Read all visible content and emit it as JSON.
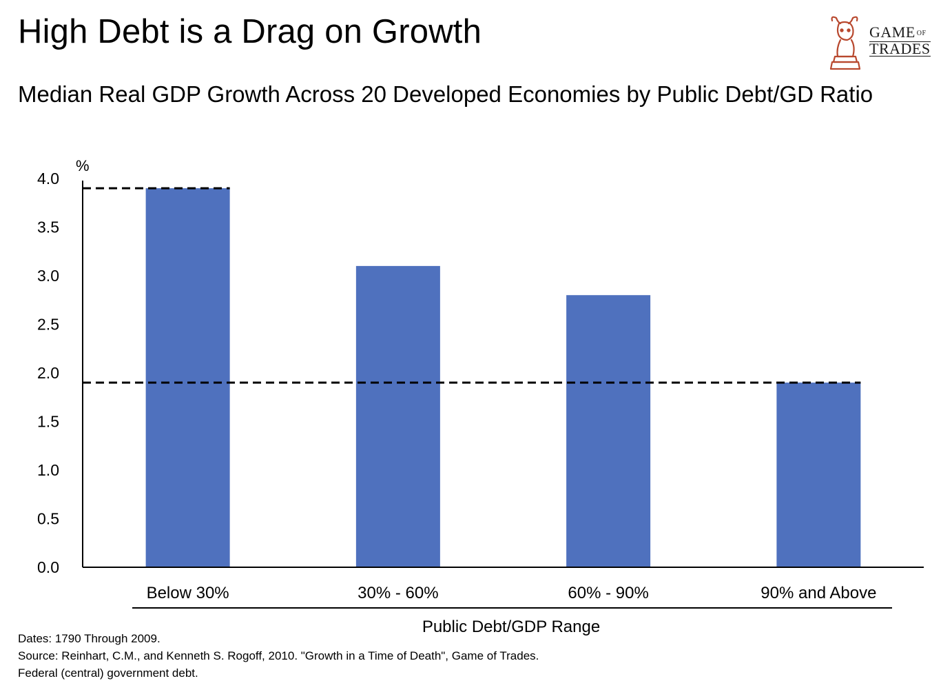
{
  "header": {
    "title": "High Debt is a Drag on Growth",
    "subtitle": "Median Real GDP Growth Across 20 Developed Economies by Public Debt/GD Ratio"
  },
  "logo": {
    "line1": "GAME",
    "of": "OF",
    "line2": "TRADES",
    "color": "#b8482e"
  },
  "chart_data": {
    "type": "bar",
    "categories": [
      "Below 30%",
      "30% - 60%",
      "60% - 90%",
      "90% and Above"
    ],
    "values": [
      3.9,
      3.1,
      2.8,
      1.9
    ],
    "unit_label": "%",
    "xlabel": "Public Debt/GDP Range",
    "ylabel": "",
    "ylim": [
      0,
      4.0
    ],
    "yticks": [
      "0.0",
      "0.5",
      "1.0",
      "1.5",
      "2.0",
      "2.5",
      "3.0",
      "3.5",
      "4.0"
    ],
    "bar_color": "#4f71be",
    "reference_lines": [
      {
        "value": 3.9,
        "style": "dashed",
        "span": "first-bar"
      },
      {
        "value": 1.9,
        "style": "dashed",
        "span": "full"
      }
    ],
    "grid": false
  },
  "footer": {
    "dates": "Dates: 1790 Through 2009.",
    "source": "Source: Reinhart, C.M., and Kenneth S. Rogoff, 2010. \"Growth in a Time of Death\", Game of Trades.",
    "note": "Federal (central) government debt."
  }
}
